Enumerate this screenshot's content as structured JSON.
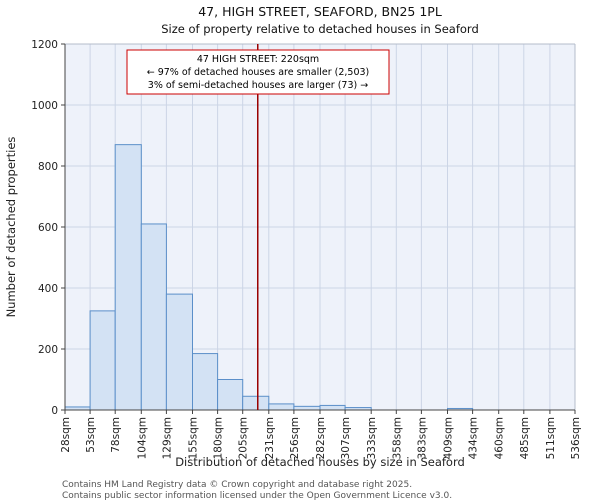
{
  "annotation": {
    "line1": "47 HIGH STREET: 220sqm",
    "line2": "← 97% of detached houses are smaller (2,503)",
    "line3": "3% of semi-detached houses are larger (73) →"
  },
  "footer": {
    "line1": "Contains HM Land Registry data © Crown copyright and database right 2025.",
    "line2": "Contains public sector information licensed under the Open Government Licence v3.0."
  },
  "chart_data": {
    "type": "bar",
    "title": "47, HIGH STREET, SEAFORD, BN25 1PL",
    "subtitle": "Size of property relative to detached houses in Seaford",
    "xlabel": "Distribution of detached houses by size in Seaford",
    "ylabel": "Number of detached properties",
    "ylim": [
      0,
      1200
    ],
    "yticks": [
      0,
      200,
      400,
      600,
      800,
      1000,
      1200
    ],
    "bin_edges_sqm": [
      28,
      53,
      78,
      104,
      129,
      155,
      180,
      205,
      231,
      256,
      282,
      307,
      333,
      358,
      383,
      409,
      434,
      460,
      485,
      511,
      536
    ],
    "x_tick_labels": [
      "28sqm",
      "53sqm",
      "78sqm",
      "104sqm",
      "129sqm",
      "155sqm",
      "180sqm",
      "205sqm",
      "231sqm",
      "256sqm",
      "282sqm",
      "307sqm",
      "333sqm",
      "358sqm",
      "383sqm",
      "409sqm",
      "434sqm",
      "460sqm",
      "485sqm",
      "511sqm",
      "536sqm"
    ],
    "values": [
      10,
      325,
      870,
      610,
      380,
      185,
      100,
      45,
      20,
      12,
      15,
      8,
      0,
      0,
      0,
      5,
      0,
      0,
      0,
      0
    ],
    "marker_value_sqm": 220,
    "grid": true,
    "legend": null,
    "colors": {
      "bar_fill": "#d3e2f4",
      "bar_stroke": "#5b8fc9",
      "marker": "#990000",
      "grid": "#ccd5e6",
      "plot_bg": "#eef2fa",
      "annotation_border": "#cc0000",
      "axis": "#444444"
    }
  }
}
